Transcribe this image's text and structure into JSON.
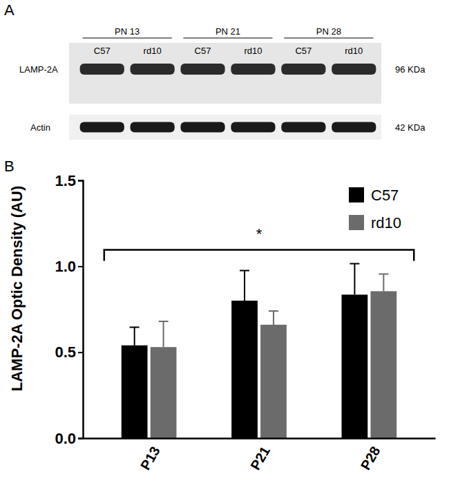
{
  "blot": {
    "panel_label": "A",
    "groups": [
      {
        "label": "PN 13",
        "lanes": [
          "C57",
          "rd10"
        ]
      },
      {
        "label": "PN 21",
        "lanes": [
          "C57",
          "rd10"
        ]
      },
      {
        "label": "PN 28",
        "lanes": [
          "C57",
          "rd10"
        ]
      }
    ],
    "rows": [
      {
        "label": "LAMP-2A",
        "size": "96 KDa"
      },
      {
        "label": "Actin",
        "size": "42 KDa"
      }
    ]
  },
  "chart_data": {
    "type": "bar",
    "panel_label": "B",
    "y_label": "LAMP-2A Optic Density (AU)",
    "categories": [
      "P13",
      "P21",
      "P28"
    ],
    "series": [
      {
        "name": "C57",
        "color": "#000000",
        "values": [
          0.54,
          0.8,
          0.835
        ],
        "error": [
          0.105,
          0.175,
          0.18
        ]
      },
      {
        "name": "rd10",
        "color": "#6b6b6b",
        "values": [
          0.53,
          0.66,
          0.855
        ],
        "error": [
          0.15,
          0.08,
          0.1
        ]
      }
    ],
    "ylim": [
      0,
      1.5
    ],
    "yticks": [
      {
        "value": 0,
        "label": "0.0"
      },
      0.5,
      {
        "value": 1,
        "label": "1.0"
      },
      1.5
    ],
    "grid": false,
    "legend": "top-right",
    "annotations": [
      {
        "text": "*",
        "from": "P13",
        "to": "P28"
      }
    ]
  }
}
